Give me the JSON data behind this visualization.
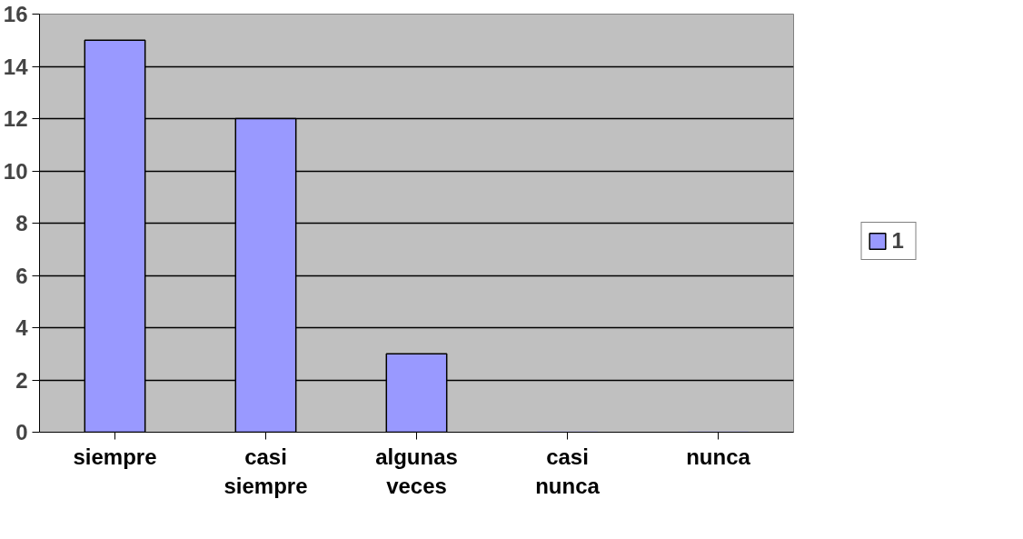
{
  "chart_data": {
    "type": "bar",
    "categories": [
      "siempre",
      "casi siempre",
      "algunas veces",
      "casi nunca",
      "nunca"
    ],
    "series": [
      {
        "name": "1",
        "color": "#9999ff",
        "values": [
          15,
          12,
          3,
          0,
          0
        ]
      }
    ],
    "ylim": [
      0,
      16
    ],
    "yticks": [
      0,
      2,
      4,
      6,
      8,
      10,
      12,
      14,
      16
    ],
    "grid": "y",
    "legend": "right"
  }
}
